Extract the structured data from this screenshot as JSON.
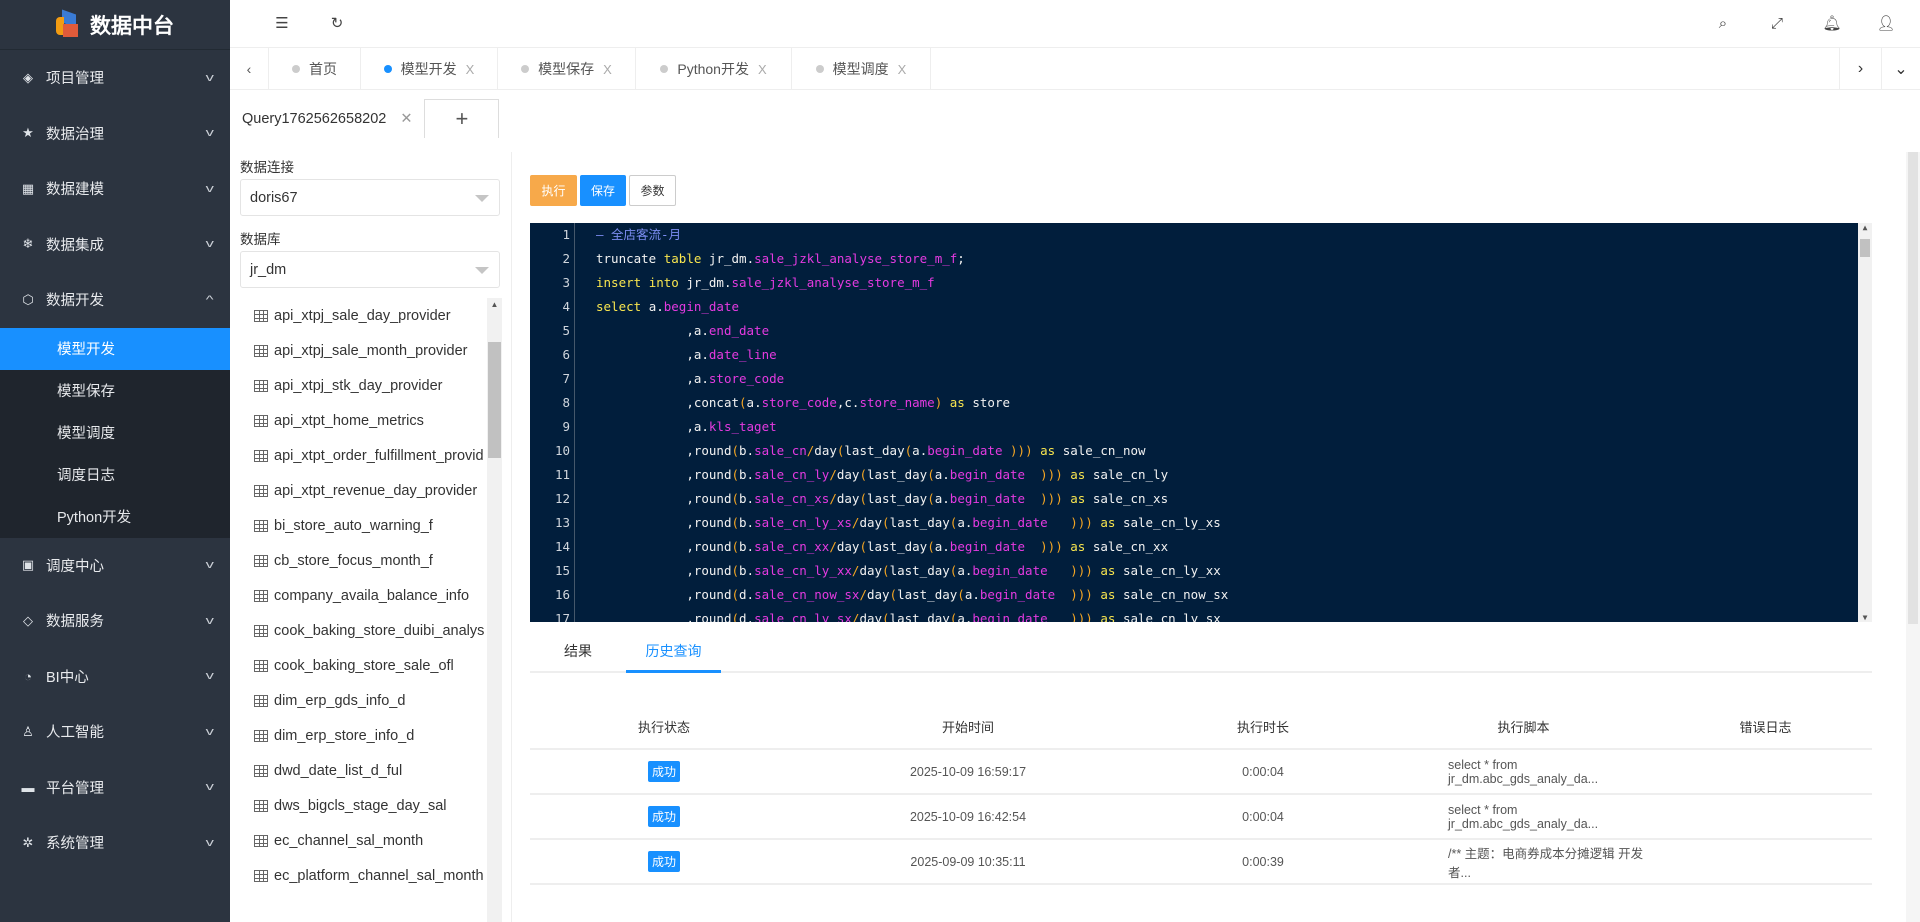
{
  "app": {
    "title": "数据中台"
  },
  "sidebar": {
    "items": [
      {
        "label": "项目管理",
        "icon": "layers-icon"
      },
      {
        "label": "数据治理",
        "icon": "star-icon"
      },
      {
        "label": "数据建模",
        "icon": "grid-icon"
      },
      {
        "label": "数据集成",
        "icon": "snowflake-icon"
      },
      {
        "label": "数据开发",
        "icon": "cube-icon",
        "expanded": true,
        "children": [
          {
            "label": "模型开发",
            "active": true
          },
          {
            "label": "模型保存"
          },
          {
            "label": "模型调度"
          },
          {
            "label": "调度日志"
          },
          {
            "label": "Python开发"
          }
        ]
      },
      {
        "label": "调度中心",
        "icon": "image-icon"
      },
      {
        "label": "数据服务",
        "icon": "diamond-icon"
      },
      {
        "label": "BI中心",
        "icon": "gauge-icon"
      },
      {
        "label": "人工智能",
        "icon": "user-icon"
      },
      {
        "label": "平台管理",
        "icon": "monitor-icon"
      },
      {
        "label": "系统管理",
        "icon": "gear-icon"
      }
    ]
  },
  "tabs": [
    {
      "label": "首页",
      "active": false,
      "closable": false
    },
    {
      "label": "模型开发",
      "active": true,
      "closable": true
    },
    {
      "label": "模型保存",
      "active": false,
      "closable": true
    },
    {
      "label": "Python开发",
      "active": false,
      "closable": true
    },
    {
      "label": "模型调度",
      "active": false,
      "closable": true
    }
  ],
  "close_glyph": "X",
  "query_tabs": [
    {
      "label": "Query1762562658202"
    }
  ],
  "add_label": "+",
  "left": {
    "connection_label": "数据连接",
    "connection_value": "doris67",
    "database_label": "数据库",
    "database_value": "jr_dm",
    "tables": [
      "api_xtpj_sale_day_provider",
      "api_xtpj_sale_month_provider",
      "api_xtpj_stk_day_provider",
      "api_xtpt_home_metrics",
      "api_xtpt_order_fulfillment_provider",
      "api_xtpt_revenue_day_provider",
      "bi_store_auto_warning_f",
      "cb_store_focus_month_f",
      "company_availa_balance_info",
      "cook_baking_store_duibi_analyst",
      "cook_baking_store_sale_ofl",
      "dim_erp_gds_info_d",
      "dim_erp_store_info_d",
      "dwd_date_list_d_ful",
      "dws_bigcls_stage_day_sal",
      "ec_channel_sal_month",
      "ec_platform_channel_sal_month"
    ]
  },
  "toolbar": {
    "run_label": "执行",
    "save_label": "保存",
    "params_label": "参数",
    "run_color": "#f7a94a",
    "save_color": "#1890ff"
  },
  "code": [
    "— 全店客流-月",
    "truncate table jr_dm.sale_jzkl_analyse_store_m_f;",
    "insert into jr_dm.sale_jzkl_analyse_store_m_f",
    "select a.begin_date",
    "            ,a.end_date",
    "            ,a.date_line",
    "            ,a.store_code",
    "            ,concat(a.store_code,c.store_name) as store",
    "            ,a.kls_taget",
    "            ,round(b.sale_cn/day(last_day(a.begin_date ))) as sale_cn_now",
    "            ,round(b.sale_cn_ly/day(last_day(a.begin_date  ))) as sale_cn_ly",
    "            ,round(b.sale_cn_xs/day(last_day(a.begin_date  ))) as sale_cn_xs",
    "            ,round(b.sale_cn_ly_xs/day(last_day(a.begin_date   ))) as sale_cn_ly_xs",
    "            ,round(b.sale_cn_xx/day(last_day(a.begin_date  ))) as sale_cn_xx",
    "            ,round(b.sale_cn_ly_xx/day(last_day(a.begin_date   ))) as sale_cn_ly_xx",
    "            ,round(d.sale_cn_now_sx/day(last_day(a.begin_date  ))) as sale_cn_now_sx",
    "            ,round(d.sale_cn_ly_sx/day(last_day(a.begin_date   ))) as sale_cn_ly_sx"
  ],
  "result_tabs": [
    {
      "label": "结果",
      "active": false
    },
    {
      "label": "历史查询",
      "active": true
    }
  ],
  "history": {
    "columns": [
      "执行状态",
      "开始时间",
      "执行时长",
      "执行脚本",
      "错误日志"
    ],
    "rows": [
      {
        "status": "成功",
        "start": "2025-10-09 16:59:17",
        "duration": "0:00:04",
        "script": "select * from jr_dm.abc_gds_analy_da...",
        "error": ""
      },
      {
        "status": "成功",
        "start": "2025-10-09 16:42:54",
        "duration": "0:00:04",
        "script": "select * from jr_dm.abc_gds_analy_da...",
        "error": ""
      },
      {
        "status": "成功",
        "start": "2025-09-09 10:35:11",
        "duration": "0:00:39",
        "script": "/** 主题：电商券成本分摊逻辑 开发者...",
        "error": ""
      }
    ]
  }
}
